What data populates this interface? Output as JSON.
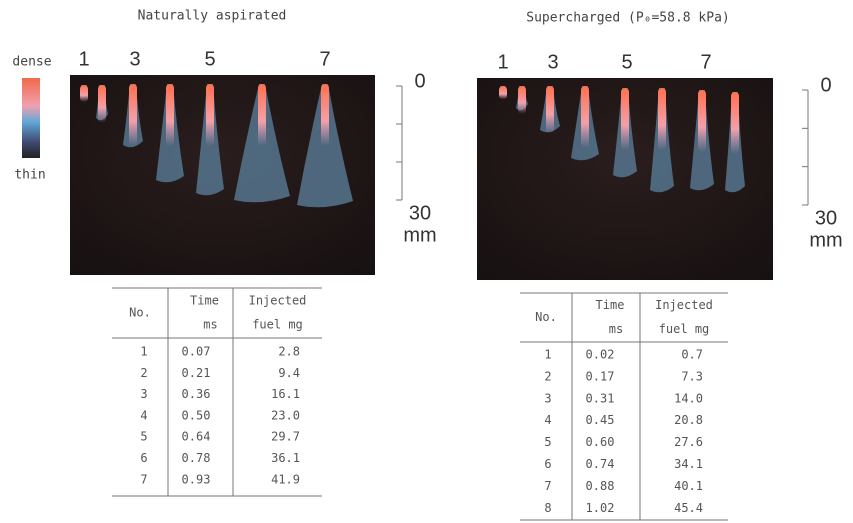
{
  "legend": {
    "top": "dense",
    "bottom": "thin"
  },
  "left": {
    "title": "Naturally aspirated",
    "frame_labels": [
      "1",
      "3",
      "5",
      "7"
    ],
    "scale": {
      "top": "0",
      "bottom": "30",
      "unit": "mm"
    },
    "table": {
      "header": {
        "no": "No.",
        "time": [
          "Time",
          "ms"
        ],
        "fuel": [
          "Injected",
          "fuel mg"
        ]
      },
      "rows": [
        [
          "1",
          "0.07",
          "2.8"
        ],
        [
          "2",
          "0.21",
          "9.4"
        ],
        [
          "3",
          "0.36",
          "16.1"
        ],
        [
          "4",
          "0.50",
          "23.0"
        ],
        [
          "5",
          "0.64",
          "29.7"
        ],
        [
          "6",
          "0.78",
          "36.1"
        ],
        [
          "7",
          "0.93",
          "41.9"
        ]
      ]
    }
  },
  "right": {
    "title": "Supercharged (P₀=58.8 kPa)",
    "frame_labels": [
      "1",
      "3",
      "5",
      "7"
    ],
    "scale": {
      "top": "0",
      "bottom": "30",
      "unit": "mm"
    },
    "table": {
      "header": {
        "no": "No.",
        "time": [
          "Time",
          "ms"
        ],
        "fuel": [
          "Injected",
          "fuel mg"
        ]
      },
      "rows": [
        [
          "1",
          "0.02",
          "0.7"
        ],
        [
          "2",
          "0.17",
          "7.3"
        ],
        [
          "3",
          "0.31",
          "14.0"
        ],
        [
          "4",
          "0.45",
          "20.8"
        ],
        [
          "5",
          "0.60",
          "27.6"
        ],
        [
          "6",
          "0.74",
          "34.1"
        ],
        [
          "7",
          "0.88",
          "40.1"
        ],
        [
          "8",
          "1.02",
          "45.4"
        ]
      ]
    }
  }
}
